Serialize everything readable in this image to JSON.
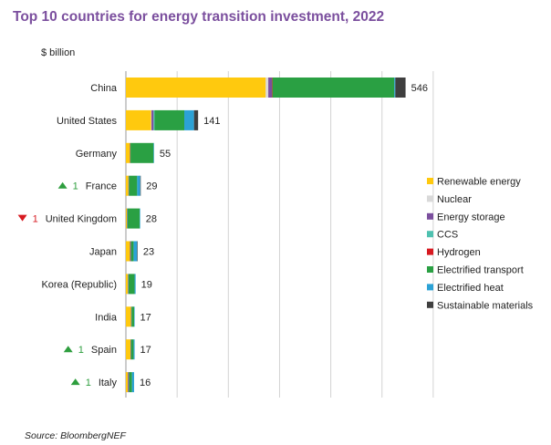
{
  "title": "Top 10 countries for energy transition investment, 2022",
  "unit_label": "$ billion",
  "source": "Source: BloombergNEF",
  "colors": {
    "up_arrow": "#2e9e3e",
    "down_arrow": "#d71920",
    "grid": "#d3d3d3",
    "axis": "#9a9a9a"
  },
  "chart_data": {
    "type": "bar",
    "orientation": "horizontal",
    "stacked": true,
    "title": "Top 10 countries for energy transition investment, 2022",
    "xlabel": "",
    "ylabel": "$ billion",
    "xlim": [
      0,
      600
    ],
    "grid": true,
    "legend_position": "right",
    "categories": [
      "China",
      "United States",
      "Germany",
      "France",
      "United Kingdom",
      "Japan",
      "Korea (Republic)",
      "India",
      "Spain",
      "Italy"
    ],
    "rank_change": [
      null,
      null,
      null,
      {
        "direction": "up",
        "value": "1"
      },
      {
        "direction": "down",
        "value": "1"
      },
      null,
      null,
      null,
      {
        "direction": "up",
        "value": "1"
      },
      {
        "direction": "up",
        "value": "1"
      }
    ],
    "totals": [
      546,
      141,
      55,
      29,
      28,
      23,
      19,
      17,
      17,
      16
    ],
    "total_labels": [
      "546",
      "141",
      "55",
      "29",
      "28",
      "23",
      "19",
      "17",
      "17",
      "16"
    ],
    "series": [
      {
        "name": "Renewable energy",
        "color": "#ffc90e",
        "values": [
          273,
          49,
          8,
          5,
          2,
          8,
          4,
          10,
          9,
          4
        ]
      },
      {
        "name": "Nuclear",
        "color": "#d9d9d9",
        "values": [
          5,
          1,
          0,
          0,
          0,
          0,
          0,
          0,
          0,
          0
        ]
      },
      {
        "name": "Energy storage",
        "color": "#7b4f9e",
        "values": [
          7,
          4,
          1,
          1,
          1,
          2,
          1,
          1,
          1,
          2
        ]
      },
      {
        "name": "CCS",
        "color": "#4fc1b0",
        "values": [
          0,
          2,
          0,
          0,
          0,
          0,
          0,
          0,
          0,
          0
        ]
      },
      {
        "name": "Hydrogen",
        "color": "#d71920",
        "values": [
          1,
          0,
          0,
          0,
          0,
          0,
          0,
          0,
          0,
          0
        ]
      },
      {
        "name": "Electrified transport",
        "color": "#2aa043",
        "values": [
          238,
          58,
          45,
          16,
          24,
          5,
          12,
          5,
          5,
          6
        ]
      },
      {
        "name": "Electrified heat",
        "color": "#2ca2d6",
        "values": [
          2,
          19,
          1,
          6,
          1,
          7,
          2,
          1,
          2,
          4
        ]
      },
      {
        "name": "Sustainable materials",
        "color": "#3f3f3f",
        "values": [
          20,
          8,
          0,
          1,
          0,
          1,
          0,
          0,
          0,
          0
        ]
      }
    ]
  }
}
